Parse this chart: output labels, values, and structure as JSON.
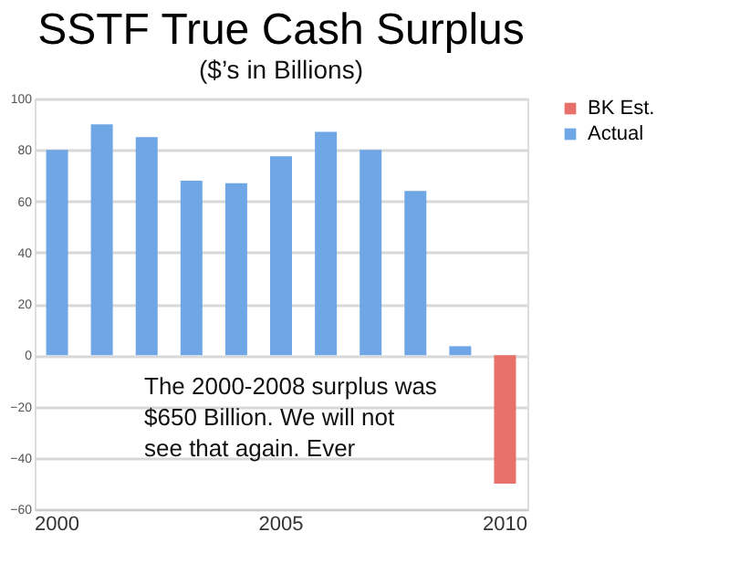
{
  "chart_data": {
    "type": "bar",
    "title": "SSTF True Cash Surplus",
    "subtitle": "($’s in Billions)",
    "categories": [
      "2000",
      null,
      null,
      null,
      null,
      "2005",
      null,
      null,
      null,
      null,
      "2010"
    ],
    "series": [
      {
        "name": "BK Est.",
        "color": "#e8706a",
        "values": [
          null,
          null,
          null,
          null,
          null,
          null,
          null,
          null,
          null,
          null,
          -50
        ]
      },
      {
        "name": "Actual",
        "color": "#6fa6e6",
        "values": [
          80,
          90,
          85,
          68,
          67,
          77.5,
          87,
          80,
          64,
          3.5,
          null
        ]
      }
    ],
    "ylim": [
      -60,
      100
    ],
    "yticks": [
      -60,
      -40,
      -20,
      0,
      20,
      40,
      60,
      80,
      100
    ],
    "grid": "y",
    "legend": "right",
    "annotations": [
      "The 2000-2008 surplus was $650 Billion. We will not see that again. Ever"
    ]
  }
}
